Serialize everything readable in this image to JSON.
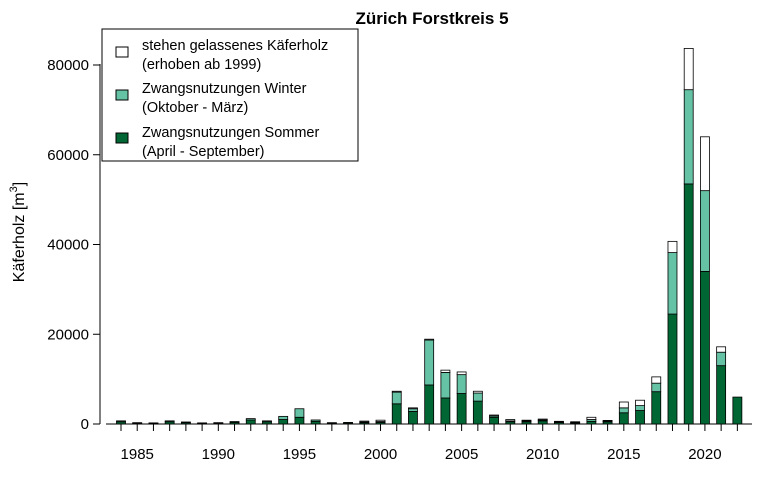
{
  "chart_data": {
    "type": "bar",
    "stacked": true,
    "title": "Zürich Forstkreis 5",
    "xlabel": "",
    "ylabel": "Käferholz [m",
    "ylabel_superscript": "3",
    "ylabel_suffix": "]",
    "ylim": [
      0,
      87000
    ],
    "yticks": [
      0,
      20000,
      40000,
      60000,
      80000
    ],
    "xticks": [
      1985,
      1990,
      1995,
      2000,
      2005,
      2010,
      2015,
      2020
    ],
    "legend_position": "top-left",
    "grid": false,
    "categories": [
      1984,
      1985,
      1986,
      1987,
      1988,
      1989,
      1990,
      1991,
      1992,
      1993,
      1994,
      1995,
      1996,
      1997,
      1998,
      1999,
      2000,
      2001,
      2002,
      2003,
      2004,
      2005,
      2006,
      2007,
      2008,
      2009,
      2010,
      2011,
      2012,
      2013,
      2014,
      2015,
      2016,
      2017,
      2018,
      2019,
      2020,
      2021,
      2022
    ],
    "series": [
      {
        "name": "Zwangsnutzungen Sommer",
        "name_line2": "(April - September)",
        "color": "#006633",
        "values": [
          500,
          200,
          150,
          500,
          300,
          150,
          200,
          350,
          900,
          500,
          1000,
          1500,
          600,
          200,
          200,
          300,
          350,
          4500,
          2800,
          8700,
          5800,
          6800,
          5100,
          1500,
          500,
          500,
          700,
          350,
          250,
          600,
          500,
          2500,
          3000,
          7200,
          24500,
          53500,
          34000,
          13000,
          6000
        ]
      },
      {
        "name": "Zwangsnutzungen Winter",
        "name_line2": "(Oktober - März)",
        "color": "#66c2a4",
        "values": [
          200,
          100,
          100,
          200,
          150,
          100,
          100,
          200,
          300,
          200,
          700,
          1900,
          300,
          100,
          150,
          150,
          200,
          2600,
          600,
          10000,
          5700,
          4200,
          1800,
          300,
          200,
          200,
          200,
          150,
          100,
          400,
          150,
          1100,
          1100,
          1900,
          13700,
          21000,
          18000,
          3000,
          0
        ]
      },
      {
        "name": "stehen gelassenes Käferholz",
        "name_line2": "(erhoben ab 1999)",
        "color": "#ffffff",
        "values": [
          0,
          0,
          0,
          0,
          0,
          0,
          0,
          0,
          0,
          0,
          0,
          0,
          0,
          0,
          0,
          200,
          300,
          200,
          200,
          200,
          500,
          600,
          400,
          200,
          300,
          150,
          200,
          100,
          150,
          500,
          150,
          1300,
          1200,
          1400,
          2500,
          9200,
          12000,
          1200,
          0
        ]
      }
    ]
  }
}
